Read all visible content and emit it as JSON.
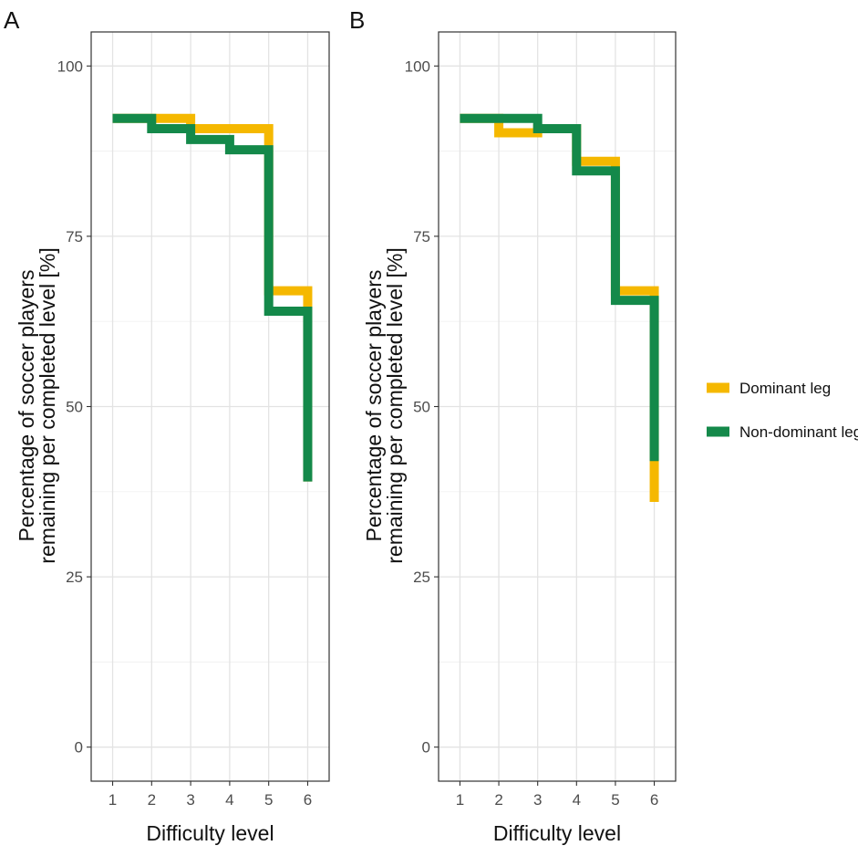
{
  "legend": {
    "items": [
      {
        "name": "Dominant leg",
        "color": "#F5B800"
      },
      {
        "name": "Non-dominant leg",
        "color": "#14894A"
      }
    ]
  },
  "chart_data": [
    {
      "panel": "A",
      "type": "line",
      "step": true,
      "xlabel": "Difficulty level",
      "ylabel_lines": [
        "Percentage of soccer players",
        "remaining per completed level [%]"
      ],
      "x_ticks": [
        1,
        2,
        3,
        4,
        5,
        6
      ],
      "y_ticks": [
        0,
        25,
        50,
        75,
        100
      ],
      "xlim": [
        0.45,
        6.55
      ],
      "ylim": [
        -5,
        105
      ],
      "grid": true,
      "series": [
        {
          "name": "Dominant leg",
          "x": [
            1,
            2,
            3,
            4,
            5,
            6
          ],
          "values": [
            92.3,
            92.3,
            90.8,
            90.8,
            67.0,
            39.0
          ]
        },
        {
          "name": "Non-dominant leg",
          "x": [
            1,
            2,
            3,
            4,
            5,
            6
          ],
          "values": [
            92.3,
            90.8,
            89.2,
            87.7,
            64.0,
            39.0
          ]
        }
      ]
    },
    {
      "panel": "B",
      "type": "line",
      "step": true,
      "xlabel": "Difficulty level",
      "ylabel_lines": [
        "Percentage of soccer players",
        "remaining per completed level [%]"
      ],
      "x_ticks": [
        1,
        2,
        3,
        4,
        5,
        6
      ],
      "y_ticks": [
        0,
        25,
        50,
        75,
        100
      ],
      "xlim": [
        0.45,
        6.55
      ],
      "ylim": [
        -5,
        105
      ],
      "grid": true,
      "series": [
        {
          "name": "Dominant leg",
          "x": [
            1,
            2,
            3,
            4,
            5,
            6
          ],
          "values": [
            92.3,
            90.2,
            90.8,
            86.0,
            67.0,
            36.0
          ]
        },
        {
          "name": "Non-dominant leg",
          "x": [
            1,
            2,
            3,
            4,
            5,
            6
          ],
          "values": [
            92.3,
            92.3,
            90.8,
            84.6,
            65.6,
            42.0
          ]
        }
      ]
    }
  ]
}
